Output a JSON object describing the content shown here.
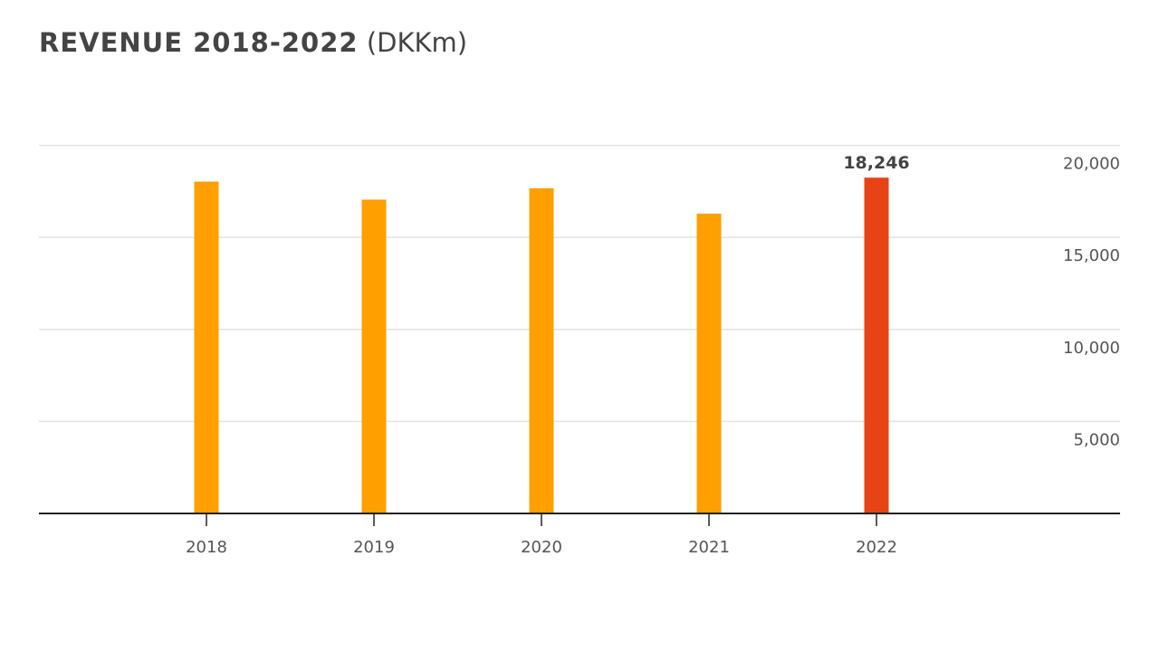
{
  "chart_data": {
    "type": "bar",
    "title": "REVENUE 2018-2022",
    "unit": "(DKKm)",
    "categories": [
      "2018",
      "2019",
      "2020",
      "2021",
      "2022"
    ],
    "values": [
      18030,
      17050,
      17670,
      16290,
      18246
    ],
    "data_labels": {
      "2022": "18,246"
    },
    "colors": [
      "#FF9F00",
      "#FF9F00",
      "#FF9F00",
      "#FF9F00",
      "#E84315"
    ],
    "ylim": [
      0,
      20000
    ],
    "yticks": [
      5000,
      10000,
      15000,
      20000
    ],
    "ytick_labels": [
      "5,000",
      "10,000",
      "15,000",
      "20,000"
    ],
    "y_axis_position": "right",
    "grid": true,
    "xlabel": "",
    "ylabel": ""
  }
}
